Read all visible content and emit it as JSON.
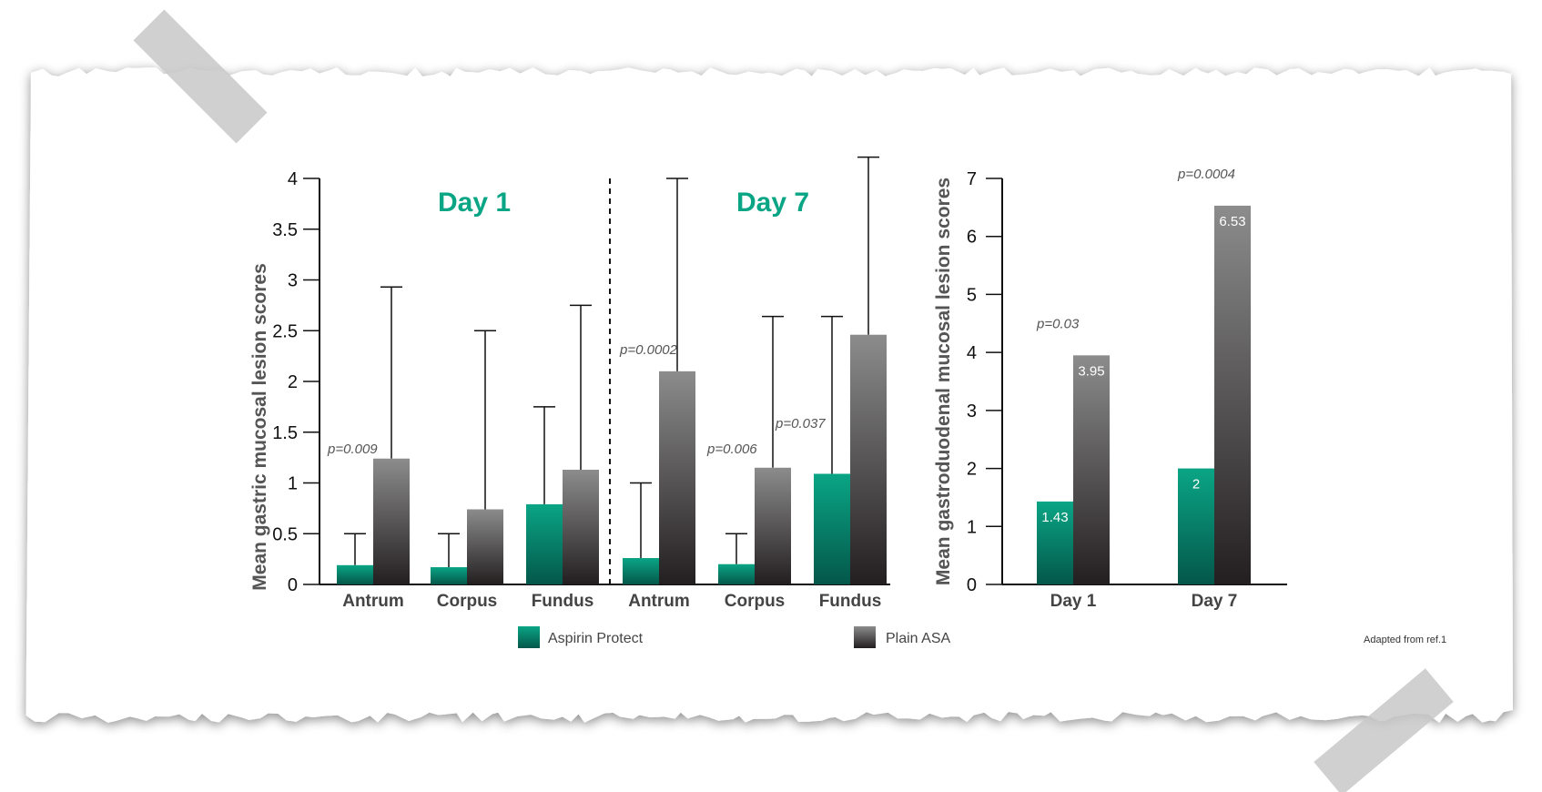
{
  "colors": {
    "aspirin_protect_top": "#0aa585",
    "aspirin_protect_bottom": "#04574a",
    "plain_asa_top": "#8c8c8c",
    "plain_asa_bottom": "#231f20",
    "day_title": "#0aa585"
  },
  "legend": {
    "series_a": "Aspirin Protect",
    "series_b": "Plain ASA"
  },
  "footnote": "Adapted from ref.1",
  "chart_data": [
    {
      "type": "bar",
      "title": "",
      "panel_titles": [
        "Day 1",
        "Day 7"
      ],
      "ylabel": "Mean gastric mucosal lesion scores",
      "xlabel": "",
      "ylim": [
        0,
        4
      ],
      "yticks": [
        "0",
        "0.5",
        "1",
        "1.5",
        "2",
        "2.5",
        "3",
        "3.5",
        "4"
      ],
      "categories": [
        "Antrum",
        "Corpus",
        "Fundus",
        "Antrum",
        "Corpus",
        "Fundus"
      ],
      "series": [
        {
          "name": "Aspirin Protect",
          "values": [
            0.19,
            0.17,
            0.79,
            0.26,
            0.2,
            1.09
          ],
          "error_upper": [
            0.5,
            0.5,
            1.75,
            1.0,
            0.5,
            2.64
          ]
        },
        {
          "name": "Plain ASA",
          "values": [
            1.24,
            0.74,
            1.13,
            2.1,
            1.15,
            2.46
          ],
          "error_upper": [
            2.93,
            2.5,
            2.75,
            4.0,
            2.64,
            4.21
          ]
        }
      ],
      "annotations": [
        "p=0.009",
        "p=0.0002",
        "p=0.006",
        "p=0.037"
      ]
    },
    {
      "type": "bar",
      "ylabel": "Mean gastroduodenal mucosal lesion scores",
      "ylim": [
        0,
        7
      ],
      "yticks": [
        "0",
        "1",
        "2",
        "3",
        "4",
        "5",
        "6",
        "7"
      ],
      "categories": [
        "Day 1",
        "Day 7"
      ],
      "series": [
        {
          "name": "Aspirin Protect",
          "values": [
            1.43,
            2
          ],
          "labels": [
            "1.43",
            "2"
          ]
        },
        {
          "name": "Plain ASA",
          "values": [
            3.95,
            6.53
          ],
          "labels": [
            "3.95",
            "6.53"
          ]
        }
      ],
      "annotations": [
        "p=0.03",
        "p=0.0004"
      ]
    }
  ]
}
